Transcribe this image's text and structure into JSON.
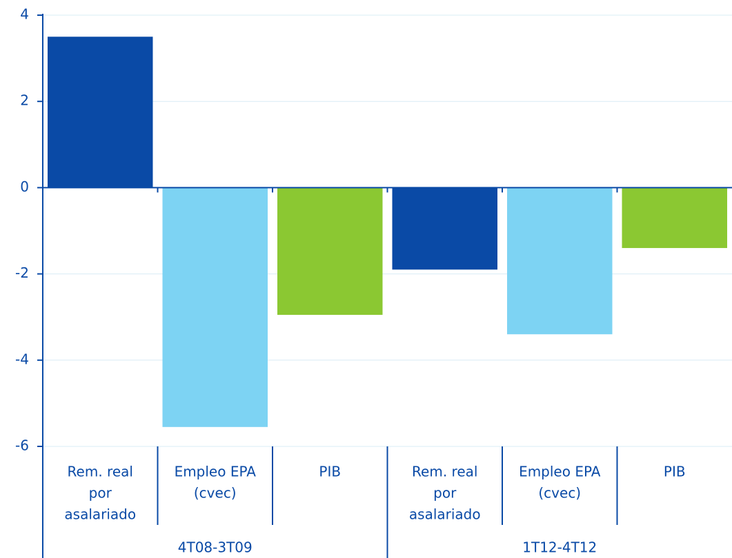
{
  "chart_data": {
    "type": "bar",
    "categories": [
      [
        "Rem. real",
        "por",
        "asalariado"
      ],
      [
        "Empleo EPA",
        "(cvec)"
      ],
      [
        "PIB"
      ]
    ],
    "colors": [
      "#0a4aa6",
      "#7dd3f3",
      "#8bc832"
    ],
    "groups": [
      {
        "label": "4T08-3T09",
        "values": [
          3.5,
          -5.55,
          -2.95
        ]
      },
      {
        "label": "1T12-4T12",
        "values": [
          -1.9,
          -3.4,
          -1.4
        ]
      }
    ],
    "ylim": [
      -6,
      4
    ],
    "yticks": [
      -6,
      -4,
      -2,
      0,
      2,
      4
    ],
    "grid": true
  }
}
